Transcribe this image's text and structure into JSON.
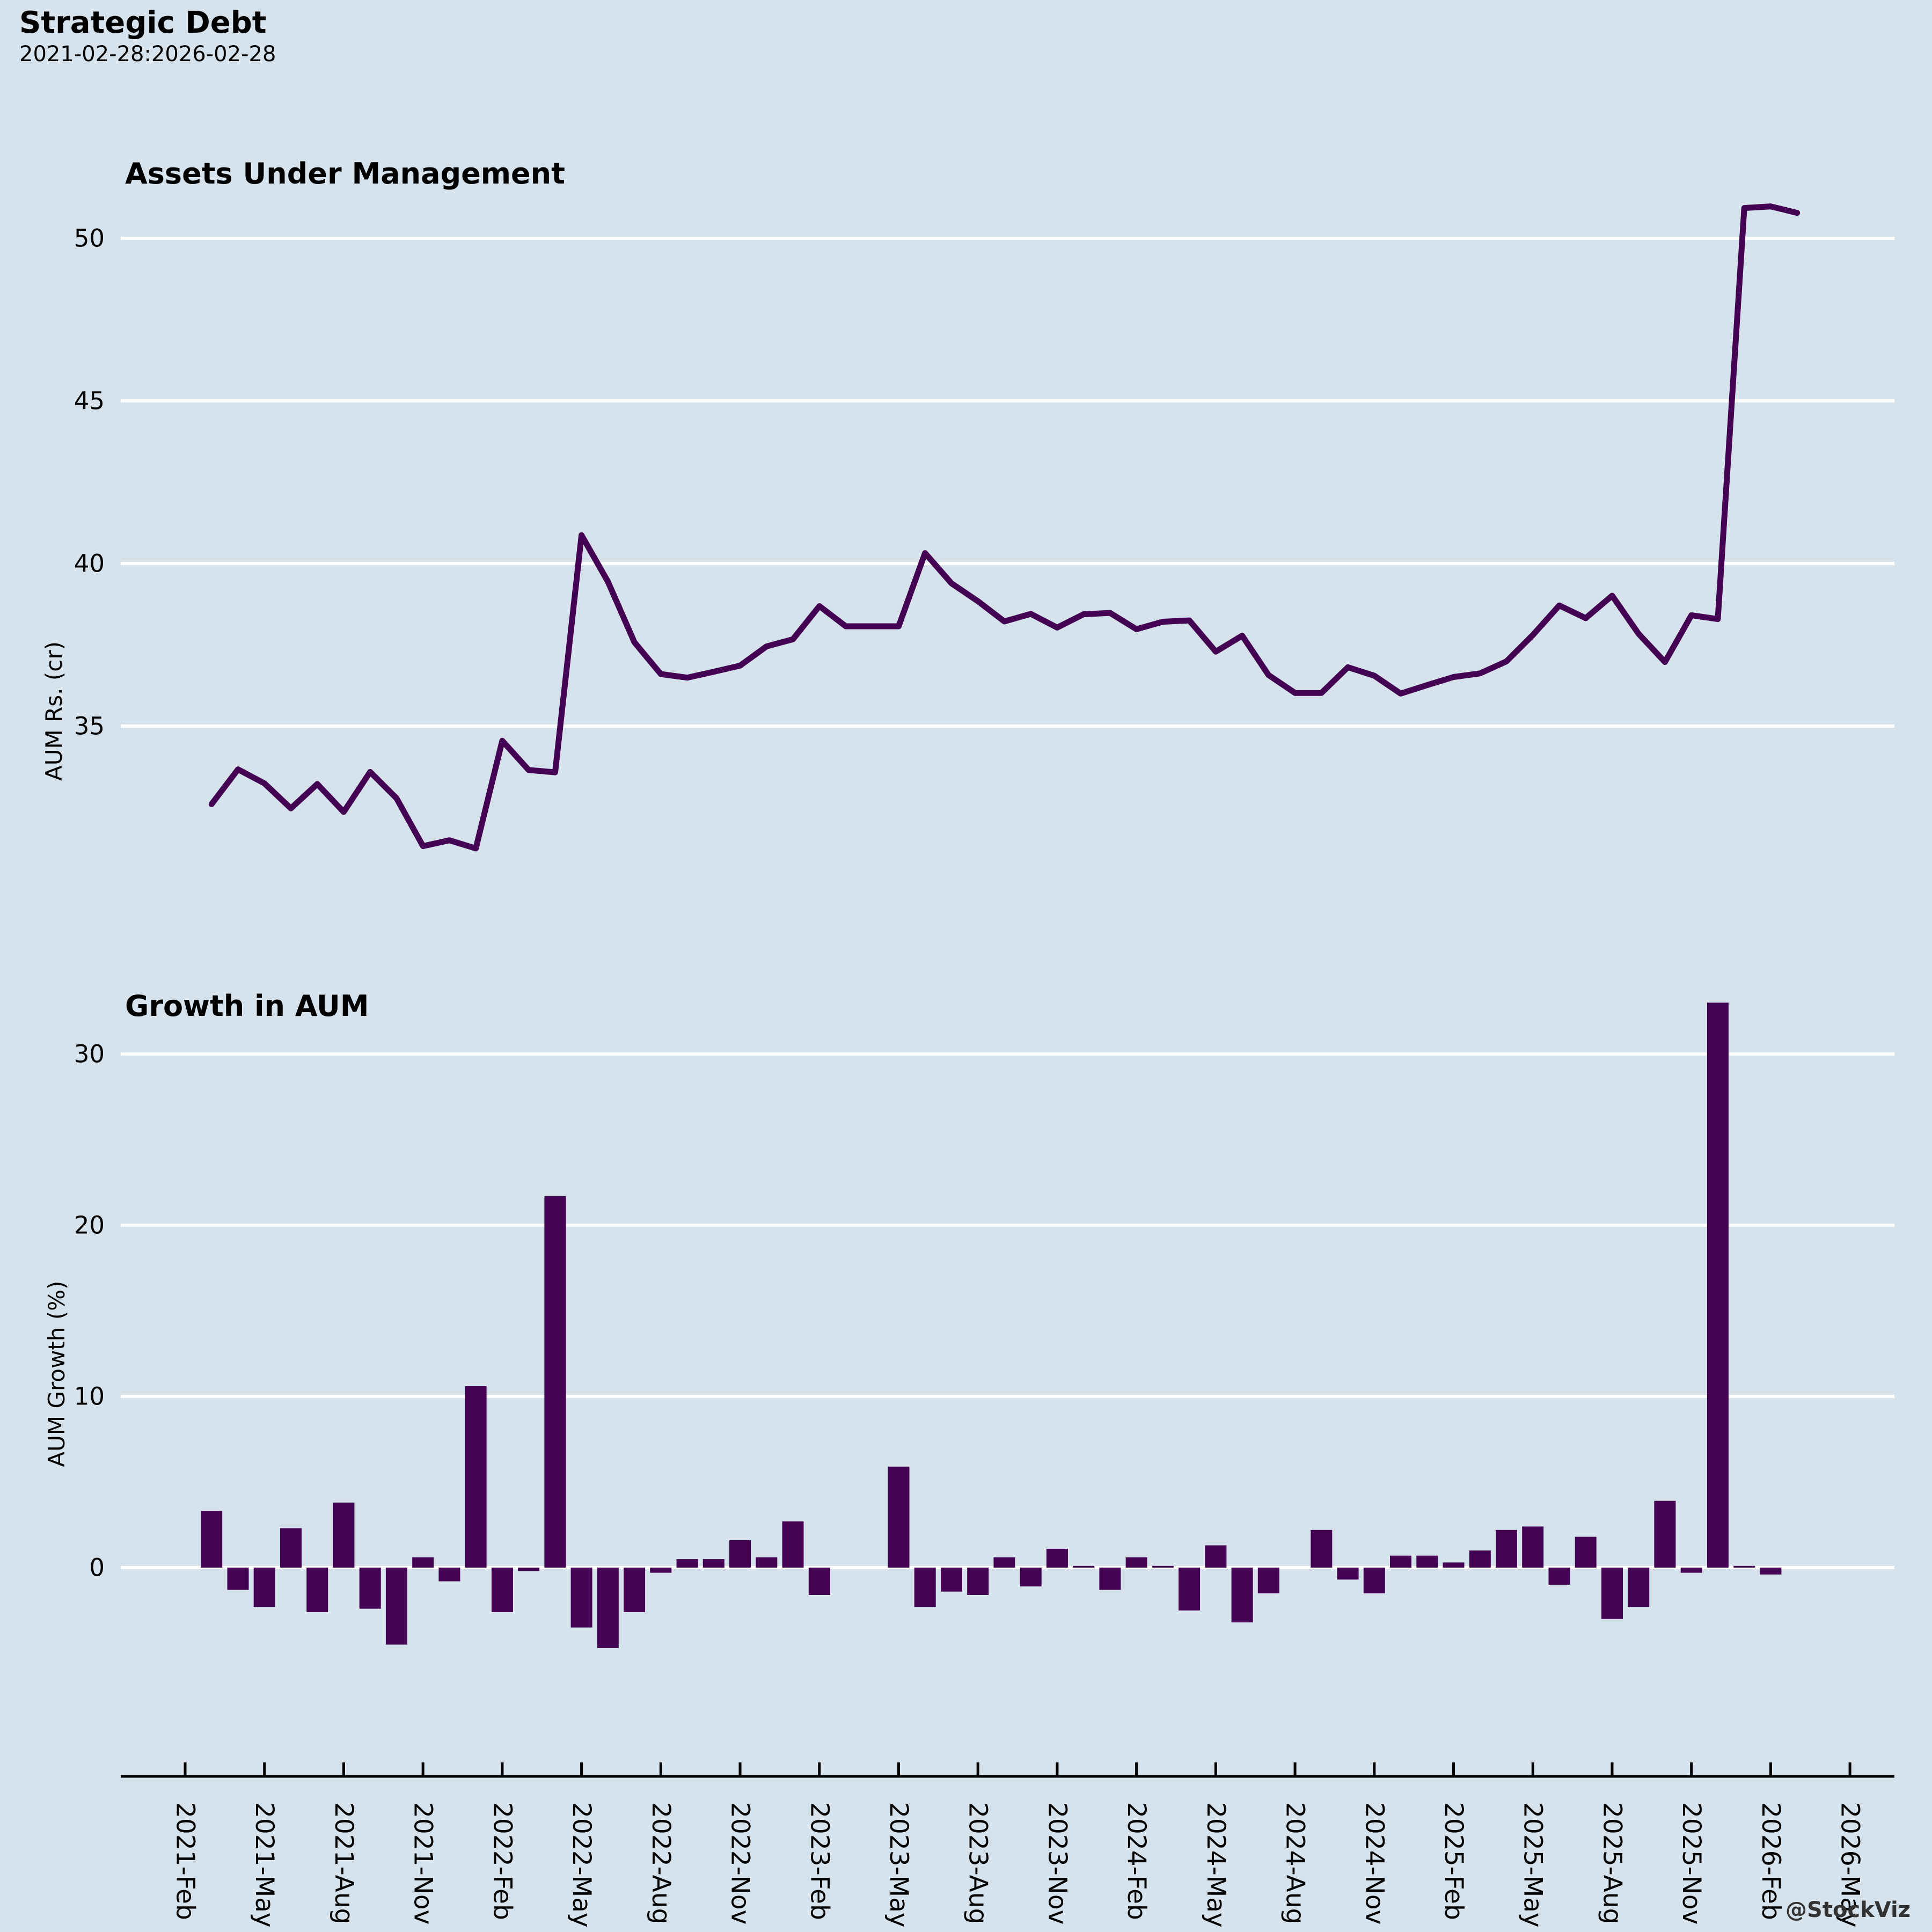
{
  "header": {
    "title": "Strategic Debt",
    "subtitle": "2021-02-28:2026-02-28"
  },
  "watermark": "@StockViz",
  "colors": {
    "background": "#d6e3ec",
    "series": "#440154",
    "gridline": "#ffffff",
    "text": "#000000",
    "axis": "#000000",
    "watermark_text": "#333333"
  },
  "chart_data": [
    {
      "type": "line",
      "title": "Assets Under Management",
      "ylabel": "AUM Rs. (cr)",
      "xlabel": "",
      "grid": true,
      "legend_position": "none",
      "yticks": [
        35,
        40,
        45,
        50
      ],
      "ylim": [
        30.8,
        51.8
      ],
      "x": [
        "2021-02",
        "2021-03",
        "2021-04",
        "2021-05",
        "2021-06",
        "2021-07",
        "2021-08",
        "2021-09",
        "2021-10",
        "2021-11",
        "2021-12",
        "2022-01",
        "2022-02",
        "2022-03",
        "2022-04",
        "2022-05",
        "2022-06",
        "2022-07",
        "2022-08",
        "2022-09",
        "2022-10",
        "2022-11",
        "2022-12",
        "2023-01",
        "2023-02",
        "2023-03",
        "2023-04",
        "2023-05",
        "2023-06",
        "2023-07",
        "2023-08",
        "2023-09",
        "2023-10",
        "2023-11",
        "2023-12",
        "2024-01",
        "2024-02",
        "2024-03",
        "2024-04",
        "2024-05",
        "2024-06",
        "2024-07",
        "2024-08",
        "2024-09",
        "2024-10",
        "2024-11",
        "2024-12",
        "2025-01",
        "2025-02",
        "2025-03",
        "2025-04",
        "2025-05",
        "2025-06",
        "2025-07",
        "2025-08",
        "2025-09",
        "2025-10",
        "2025-11",
        "2025-12",
        "2026-01",
        "2026-02"
      ],
      "values": [
        32.6,
        33.67,
        33.24,
        32.47,
        33.22,
        32.36,
        33.59,
        32.78,
        31.31,
        31.49,
        31.24,
        34.55,
        33.65,
        33.58,
        40.87,
        39.44,
        37.58,
        36.6,
        36.49,
        36.67,
        36.86,
        37.45,
        37.67,
        38.69,
        38.07,
        38.07,
        38.07,
        40.32,
        39.39,
        38.84,
        38.22,
        38.45,
        38.03,
        38.44,
        38.48,
        37.98,
        38.21,
        38.25,
        37.29,
        37.78,
        36.57,
        36.02,
        36.02,
        36.81,
        36.55,
        36.0,
        36.26,
        36.51,
        36.62,
        36.99,
        37.8,
        38.71,
        38.32,
        39.01,
        37.84,
        36.97,
        38.41,
        38.29,
        50.93,
        50.98,
        50.78
      ]
    },
    {
      "type": "bar",
      "title": "Growth in AUM",
      "ylabel": "AUM Growth (%)",
      "xlabel": "",
      "grid": true,
      "legend_position": "none",
      "yticks": [
        0,
        10,
        20,
        30
      ],
      "ylim": [
        -12.2,
        34.6
      ],
      "x": [
        "2021-03",
        "2021-04",
        "2021-05",
        "2021-06",
        "2021-07",
        "2021-08",
        "2021-09",
        "2021-10",
        "2021-11",
        "2021-12",
        "2022-01",
        "2022-02",
        "2022-03",
        "2022-04",
        "2022-05",
        "2022-06",
        "2022-07",
        "2022-08",
        "2022-09",
        "2022-10",
        "2022-11",
        "2022-12",
        "2023-01",
        "2023-02",
        "2023-03",
        "2023-04",
        "2023-05",
        "2023-06",
        "2023-07",
        "2023-08",
        "2023-09",
        "2023-10",
        "2023-11",
        "2023-12",
        "2024-01",
        "2024-02",
        "2024-03",
        "2024-04",
        "2024-05",
        "2024-06",
        "2024-07",
        "2024-08",
        "2024-09",
        "2024-10",
        "2024-11",
        "2024-12",
        "2025-01",
        "2025-02",
        "2025-03",
        "2025-04",
        "2025-05",
        "2025-06",
        "2025-07",
        "2025-08",
        "2025-09",
        "2025-10",
        "2025-11",
        "2025-12",
        "2026-01",
        "2026-02"
      ],
      "values": [
        3.3,
        -1.3,
        -2.3,
        2.3,
        -2.6,
        3.8,
        -2.4,
        -4.5,
        0.6,
        -0.8,
        10.6,
        -2.6,
        -0.2,
        21.7,
        -3.5,
        -4.7,
        -2.6,
        -0.3,
        0.5,
        0.5,
        1.6,
        0.6,
        2.7,
        -1.6,
        0.0,
        0.0,
        5.9,
        -2.3,
        -1.4,
        -1.6,
        0.6,
        -1.1,
        1.1,
        0.1,
        -1.3,
        0.6,
        0.1,
        -2.5,
        1.3,
        -3.2,
        -1.5,
        0.0,
        2.2,
        -0.7,
        -1.5,
        0.7,
        0.7,
        0.3,
        1.0,
        2.2,
        2.4,
        -1.0,
        1.8,
        -3.0,
        -2.3,
        3.9,
        -0.3,
        33.0,
        0.1,
        -0.4
      ]
    }
  ],
  "x_axis": {
    "tick_labels": [
      "2021-Feb",
      "2021-May",
      "2021-Aug",
      "2021-Nov",
      "2022-Feb",
      "2022-May",
      "2022-Aug",
      "2022-Nov",
      "2023-Feb",
      "2023-May",
      "2023-Aug",
      "2023-Nov",
      "2024-Feb",
      "2024-May",
      "2024-Aug",
      "2024-Nov",
      "2025-Feb",
      "2025-May",
      "2025-Aug",
      "2025-Nov",
      "2026-Feb",
      "2026-May"
    ]
  }
}
